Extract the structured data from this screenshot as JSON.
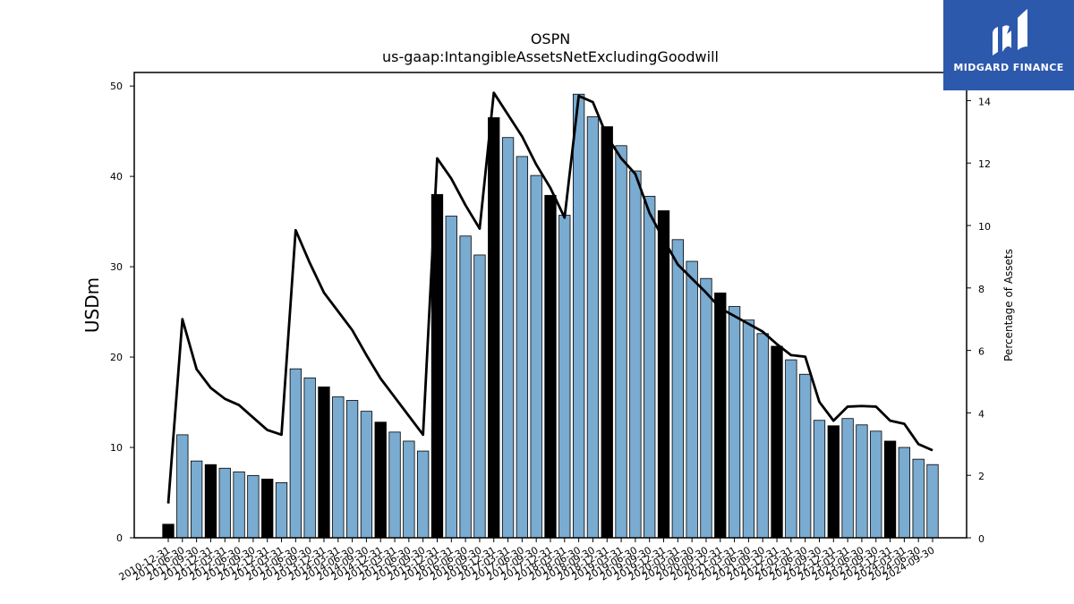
{
  "brand": {
    "name": "MIDGARD FINANCE",
    "logo_icon": "midgard-logo-icon",
    "background_color": "#2d59ad"
  },
  "chart_data": {
    "type": "bar",
    "title": "OSPN",
    "subtitle": "us-gaap:IntangibleAssetsNetExcludingGoodwill",
    "ylabel": "USDm",
    "y2label": "Percentage of Assets",
    "ylim": [
      0,
      51.5
    ],
    "y2lim": [
      0,
      14.9
    ],
    "yticks": [
      0,
      10,
      20,
      30,
      40,
      50
    ],
    "y2ticks": [
      0,
      2,
      4,
      6,
      8,
      10,
      12,
      14
    ],
    "grid": false,
    "colors": {
      "bar_default": "#7aabd0",
      "bar_highlight": "#000000",
      "line": "#000000"
    },
    "categories": [
      "2010-12-31",
      "2011-06-30",
      "2011-09-30",
      "2011-12-31",
      "2012-03-31",
      "2012-06-30",
      "2012-09-30",
      "2012-12-31",
      "2013-03-31",
      "2013-06-30",
      "2013-09-30",
      "2013-12-31",
      "2014-03-31",
      "2014-06-30",
      "2014-09-30",
      "2014-12-31",
      "2015-03-31",
      "2015-06-30",
      "2015-09-30",
      "2015-12-31",
      "2016-03-31",
      "2016-06-30",
      "2016-09-30",
      "2016-12-31",
      "2017-03-31",
      "2017-06-30",
      "2017-09-30",
      "2017-12-31",
      "2018-03-31",
      "2018-06-30",
      "2018-09-30",
      "2018-12-31",
      "2019-03-31",
      "2019-06-30",
      "2019-09-30",
      "2019-12-31",
      "2020-03-31",
      "2020-06-30",
      "2020-09-30",
      "2020-12-31",
      "2021-03-31",
      "2021-06-30",
      "2021-09-30",
      "2021-12-31",
      "2022-03-31",
      "2022-06-30",
      "2022-09-30",
      "2022-12-31",
      "2023-03-31",
      "2023-06-30",
      "2023-09-30",
      "2023-12-31",
      "2024-03-31",
      "2024-06-30",
      "2024-09-30"
    ],
    "series": [
      {
        "axis": "left",
        "kind": "bar",
        "values": [
          1.5,
          11.4,
          8.5,
          8.1,
          7.7,
          7.3,
          6.9,
          6.5,
          6.1,
          18.7,
          17.7,
          16.7,
          15.6,
          15.2,
          14.0,
          12.8,
          11.7,
          10.7,
          9.6,
          38.0,
          35.6,
          33.4,
          31.3,
          46.5,
          44.3,
          42.2,
          40.1,
          37.9,
          35.7,
          49.1,
          46.6,
          45.5,
          43.4,
          40.6,
          37.8,
          36.2,
          33.0,
          30.6,
          28.7,
          27.1,
          25.6,
          24.1,
          22.6,
          21.2,
          19.7,
          18.1,
          13.0,
          12.4,
          13.2,
          12.5,
          11.8,
          10.7,
          10.0,
          8.7,
          8.1
        ],
        "highlight": [
          true,
          false,
          false,
          true,
          false,
          false,
          false,
          true,
          false,
          false,
          false,
          true,
          false,
          false,
          false,
          true,
          false,
          false,
          false,
          true,
          false,
          false,
          false,
          true,
          false,
          false,
          false,
          true,
          false,
          false,
          false,
          true,
          false,
          false,
          false,
          true,
          false,
          false,
          false,
          true,
          false,
          false,
          false,
          true,
          false,
          false,
          false,
          true,
          false,
          false,
          false,
          true,
          false,
          false,
          false
        ]
      },
      {
        "axis": "right",
        "kind": "line",
        "values": [
          1.1,
          7.0,
          5.4,
          4.8,
          4.45,
          4.25,
          3.85,
          3.45,
          3.3,
          9.85,
          8.8,
          7.85,
          7.25,
          6.65,
          5.85,
          5.1,
          4.5,
          3.9,
          3.3,
          12.15,
          11.5,
          10.65,
          9.9,
          14.25,
          13.55,
          12.85,
          11.95,
          11.2,
          10.25,
          14.15,
          13.95,
          12.85,
          12.15,
          11.65,
          10.4,
          9.55,
          8.75,
          8.3,
          7.85,
          7.35,
          7.1,
          6.85,
          6.6,
          6.2,
          5.85,
          5.8,
          4.35,
          3.75,
          4.2,
          4.22,
          4.2,
          3.75,
          3.65,
          3.0,
          2.8
        ]
      }
    ]
  }
}
